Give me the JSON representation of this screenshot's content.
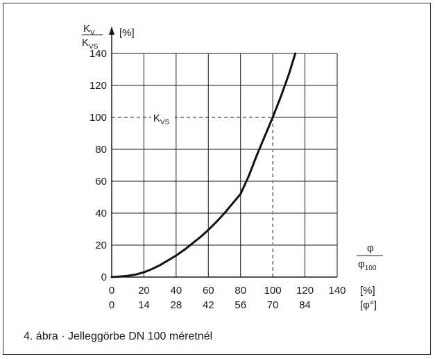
{
  "chart_data": {
    "type": "line",
    "title": "",
    "ylabel": {
      "numerator": "Kv",
      "denominator": "Kvs",
      "numerator_main": "K",
      "numerator_sub": "V",
      "denominator_main": "K",
      "denominator_sub": "VS",
      "unit": "[%]"
    },
    "xlabel": {
      "numerator": "φ",
      "denominator": "φ100",
      "denominator_main": "φ",
      "denominator_sub": "100"
    },
    "x_unit": "[%]",
    "x2_unit": "[φ°]",
    "xlim": [
      0,
      140
    ],
    "ylim": [
      0,
      140
    ],
    "x_ticks": [
      "0",
      "20",
      "40",
      "60",
      "80",
      "100",
      "120",
      "140"
    ],
    "x_ticks_deg": [
      "0",
      "14",
      "28",
      "42",
      "56",
      "70",
      "84"
    ],
    "y_ticks": [
      "0",
      "20",
      "40",
      "60",
      "80",
      "100",
      "120",
      "140"
    ],
    "grid": true,
    "series": [
      {
        "x": [
          0,
          5,
          10,
          15,
          20,
          25,
          30,
          35,
          40,
          45,
          50,
          55,
          60,
          65,
          70,
          75,
          80,
          85,
          90,
          95,
          100,
          105,
          110,
          114
        ],
        "y": [
          0,
          0.3,
          0.8,
          1.6,
          3,
          5,
          7.5,
          10.5,
          13.5,
          17,
          21,
          25,
          29.5,
          34.5,
          40,
          46,
          52,
          63,
          76,
          88,
          100,
          113,
          127,
          140
        ]
      }
    ],
    "annotations": [
      {
        "text": "KVS",
        "main": "K",
        "sub": "VS",
        "x": 100,
        "y": 100,
        "style": "dashed-reference"
      }
    ]
  },
  "caption": "4. ábra · Jelleggörbe DN 100 méretnél"
}
